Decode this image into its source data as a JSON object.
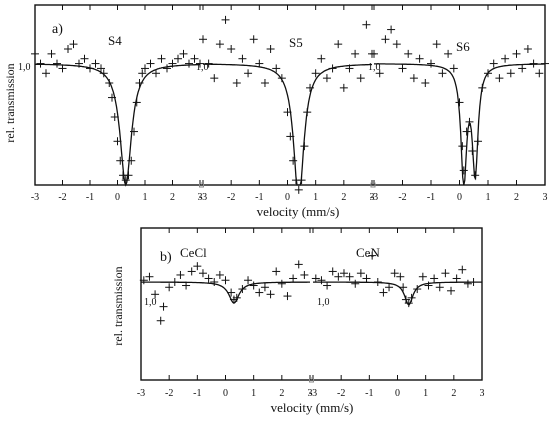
{
  "chart_data": [
    {
      "type": "scatter",
      "panel_label": "a)",
      "xlabel": "velocity (mm/s)",
      "ylabel": "rel. transmission",
      "y_reference_label": "1,0",
      "tick_labels": [
        "-3",
        "-2",
        "-1",
        "0",
        "1",
        "2",
        "3"
      ],
      "xlim": [
        -3,
        3
      ],
      "ylim": [
        0.75,
        1.1
      ],
      "series": [
        {
          "name": "S4",
          "fit": {
            "shape": "singlet",
            "center": 0.3,
            "depth": 0.25,
            "hwhm": 0.25
          },
          "points": [
            [
              -3.0,
              1.02
            ],
            [
              -2.8,
              1.0
            ],
            [
              -2.6,
              0.98
            ],
            [
              -2.4,
              1.02
            ],
            [
              -2.2,
              1.0
            ],
            [
              -2.0,
              0.99
            ],
            [
              -1.8,
              1.03
            ],
            [
              -1.6,
              1.04
            ],
            [
              -1.4,
              1.0
            ],
            [
              -1.2,
              1.01
            ],
            [
              -1.0,
              0.99
            ],
            [
              -0.8,
              1.0
            ],
            [
              -0.6,
              0.99
            ],
            [
              -0.5,
              0.98
            ],
            [
              -0.3,
              0.96
            ],
            [
              -0.2,
              0.93
            ],
            [
              -0.1,
              0.89
            ],
            [
              0.0,
              0.84
            ],
            [
              0.1,
              0.8
            ],
            [
              0.2,
              0.77
            ],
            [
              0.3,
              0.76
            ],
            [
              0.4,
              0.77
            ],
            [
              0.5,
              0.8
            ],
            [
              0.6,
              0.86
            ],
            [
              0.7,
              0.92
            ],
            [
              0.8,
              0.96
            ],
            [
              0.9,
              0.98
            ],
            [
              1.0,
              0.99
            ],
            [
              1.2,
              1.0
            ],
            [
              1.4,
              0.98
            ],
            [
              1.6,
              1.01
            ],
            [
              1.8,
              0.99
            ],
            [
              2.0,
              1.0
            ],
            [
              2.2,
              1.01
            ],
            [
              2.4,
              1.02
            ],
            [
              2.6,
              1.0
            ],
            [
              2.8,
              1.01
            ],
            [
              3.0,
              1.0
            ]
          ]
        },
        {
          "name": "S5",
          "fit": {
            "shape": "singlet",
            "center": 0.4,
            "depth": 0.28,
            "hwhm": 0.22
          },
          "points": [
            [
              -3.0,
              1.05
            ],
            [
              -2.8,
              1.0
            ],
            [
              -2.6,
              0.97
            ],
            [
              -2.4,
              1.04
            ],
            [
              -2.2,
              1.09
            ],
            [
              -2.0,
              1.03
            ],
            [
              -1.8,
              0.96
            ],
            [
              -1.6,
              1.01
            ],
            [
              -1.4,
              0.98
            ],
            [
              -1.2,
              1.05
            ],
            [
              -1.0,
              1.0
            ],
            [
              -0.8,
              0.96
            ],
            [
              -0.6,
              1.03
            ],
            [
              -0.4,
              0.99
            ],
            [
              -0.2,
              0.97
            ],
            [
              0.0,
              0.9
            ],
            [
              0.1,
              0.85
            ],
            [
              0.2,
              0.8
            ],
            [
              0.3,
              0.76
            ],
            [
              0.4,
              0.74
            ],
            [
              0.5,
              0.76
            ],
            [
              0.6,
              0.83
            ],
            [
              0.7,
              0.9
            ],
            [
              0.8,
              0.95
            ],
            [
              1.0,
              0.98
            ],
            [
              1.2,
              1.01
            ],
            [
              1.4,
              0.97
            ],
            [
              1.6,
              0.99
            ],
            [
              1.8,
              1.04
            ],
            [
              2.0,
              0.95
            ],
            [
              2.2,
              0.99
            ],
            [
              2.4,
              1.02
            ],
            [
              2.6,
              0.97
            ],
            [
              2.8,
              1.08
            ],
            [
              3.0,
              1.02
            ]
          ]
        },
        {
          "name": "S6",
          "fit": {
            "shape": "doublet",
            "centers": [
              0.15,
              0.55
            ],
            "depths": [
              0.24,
              0.22
            ],
            "hwhm": 0.12
          },
          "points": [
            [
              -3.0,
              1.02
            ],
            [
              -2.8,
              0.98
            ],
            [
              -2.6,
              1.05
            ],
            [
              -2.4,
              1.07
            ],
            [
              -2.2,
              1.04
            ],
            [
              -2.0,
              0.99
            ],
            [
              -1.8,
              1.02
            ],
            [
              -1.6,
              0.97
            ],
            [
              -1.4,
              1.01
            ],
            [
              -1.2,
              0.96
            ],
            [
              -1.0,
              1.0
            ],
            [
              -0.8,
              1.04
            ],
            [
              -0.6,
              0.98
            ],
            [
              -0.4,
              1.02
            ],
            [
              -0.2,
              0.99
            ],
            [
              0.0,
              0.92
            ],
            [
              0.1,
              0.83
            ],
            [
              0.15,
              0.78
            ],
            [
              0.25,
              0.86
            ],
            [
              0.35,
              0.88
            ],
            [
              0.45,
              0.82
            ],
            [
              0.55,
              0.77
            ],
            [
              0.65,
              0.84
            ],
            [
              0.8,
              0.95
            ],
            [
              1.0,
              0.98
            ],
            [
              1.2,
              1.0
            ],
            [
              1.4,
              0.97
            ],
            [
              1.6,
              1.01
            ],
            [
              1.8,
              0.98
            ],
            [
              2.0,
              1.02
            ],
            [
              2.2,
              0.99
            ],
            [
              2.4,
              1.03
            ],
            [
              2.6,
              1.0
            ],
            [
              2.8,
              0.98
            ],
            [
              3.0,
              1.0
            ]
          ]
        }
      ]
    },
    {
      "type": "scatter",
      "panel_label": "b)",
      "xlabel": "velocity (mm/s)",
      "ylabel": "rel. transmission",
      "y_reference_label": "1,0",
      "tick_labels": [
        "-3",
        "-2",
        "-1",
        "0",
        "1",
        "2",
        "3"
      ],
      "xlim": [
        -3,
        3
      ],
      "ylim": [
        0.95,
        1.025
      ],
      "series": [
        {
          "name": "CeCl",
          "fit": {
            "shape": "singlet",
            "center": 0.3,
            "depth": 0.012,
            "hwhm": 0.22
          },
          "points": [
            [
              -2.9,
              1.001
            ],
            [
              -2.7,
              1.003
            ],
            [
              -2.5,
              0.993
            ],
            [
              -2.3,
              0.978
            ],
            [
              -2.2,
              0.986
            ],
            [
              -2.0,
              0.997
            ],
            [
              -1.8,
              1.0
            ],
            [
              -1.6,
              1.004
            ],
            [
              -1.4,
              0.998
            ],
            [
              -1.2,
              1.006
            ],
            [
              -1.0,
              1.009
            ],
            [
              -0.8,
              1.005
            ],
            [
              -0.6,
              1.002
            ],
            [
              -0.4,
              1.0
            ],
            [
              -0.2,
              1.004
            ],
            [
              0.0,
              1.001
            ],
            [
              0.2,
              0.994
            ],
            [
              0.3,
              0.99
            ],
            [
              0.4,
              0.991
            ],
            [
              0.6,
              0.996
            ],
            [
              0.8,
              1.001
            ],
            [
              1.0,
              0.998
            ],
            [
              1.2,
              0.994
            ],
            [
              1.4,
              0.997
            ],
            [
              1.6,
              0.993
            ],
            [
              1.8,
              1.006
            ],
            [
              2.0,
              0.999
            ],
            [
              2.2,
              0.992
            ],
            [
              2.4,
              1.002
            ],
            [
              2.6,
              1.01
            ],
            [
              2.8,
              1.004
            ]
          ]
        },
        {
          "name": "CeN",
          "fit": {
            "shape": "singlet",
            "center": 0.4,
            "depth": 0.013,
            "hwhm": 0.18
          },
          "points": [
            [
              -2.9,
              1.002
            ],
            [
              -2.7,
              1.001
            ],
            [
              -2.5,
              0.998
            ],
            [
              -2.3,
              1.006
            ],
            [
              -2.1,
              1.003
            ],
            [
              -1.9,
              1.005
            ],
            [
              -1.7,
              1.003
            ],
            [
              -1.5,
              0.999
            ],
            [
              -1.3,
              1.005
            ],
            [
              -1.1,
              1.002
            ],
            [
              -0.9,
              1.015
            ],
            [
              -0.7,
              1.0
            ],
            [
              -0.5,
              0.994
            ],
            [
              -0.3,
              0.997
            ],
            [
              -0.1,
              1.005
            ],
            [
              0.1,
              1.003
            ],
            [
              0.2,
              0.997
            ],
            [
              0.3,
              0.99
            ],
            [
              0.4,
              0.988
            ],
            [
              0.5,
              0.991
            ],
            [
              0.7,
              0.996
            ],
            [
              0.9,
              1.003
            ],
            [
              1.1,
              0.998
            ],
            [
              1.3,
              1.002
            ],
            [
              1.5,
              0.997
            ],
            [
              1.7,
              1.005
            ],
            [
              1.9,
              0.995
            ],
            [
              2.1,
              1.002
            ],
            [
              2.3,
              1.007
            ],
            [
              2.5,
              0.999
            ],
            [
              2.7,
              1.0
            ]
          ]
        }
      ]
    }
  ]
}
